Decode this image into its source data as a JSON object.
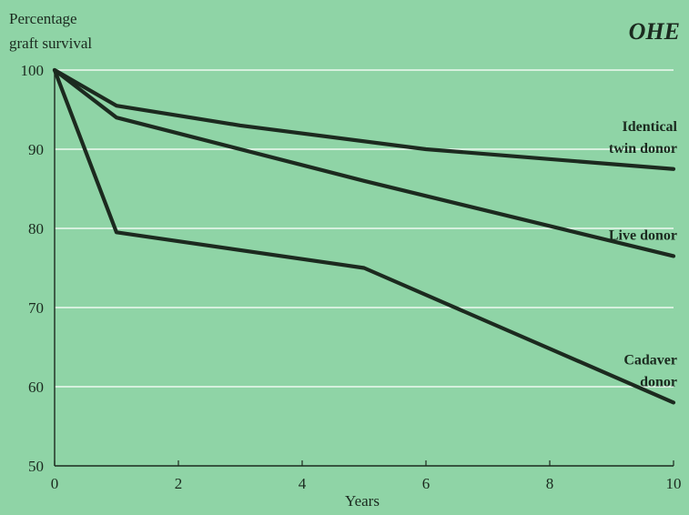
{
  "logo": {
    "text": "OHE"
  },
  "chart_data": {
    "type": "line",
    "ylabel_line1": "Percentage",
    "ylabel_line2": "graft survival",
    "xlabel": "Years",
    "xlim": [
      0,
      10
    ],
    "ylim": [
      50,
      100
    ],
    "xticks": [
      0,
      2,
      4,
      6,
      8,
      10
    ],
    "yticks": [
      50,
      60,
      70,
      80,
      90,
      100
    ],
    "grid": true,
    "series": [
      {
        "label_lines": [
          "Identical",
          "twin donor"
        ],
        "x": [
          0,
          1,
          3,
          6,
          10
        ],
        "y": [
          100,
          95.5,
          93,
          90,
          87.5
        ]
      },
      {
        "label_lines": [
          "Live donor"
        ],
        "x": [
          0,
          1,
          5,
          10
        ],
        "y": [
          100,
          94,
          86,
          76.5
        ]
      },
      {
        "label_lines": [
          "Cadaver",
          "donor"
        ],
        "x": [
          0,
          1,
          5,
          10
        ],
        "y": [
          100,
          79.5,
          75,
          58
        ]
      }
    ]
  }
}
